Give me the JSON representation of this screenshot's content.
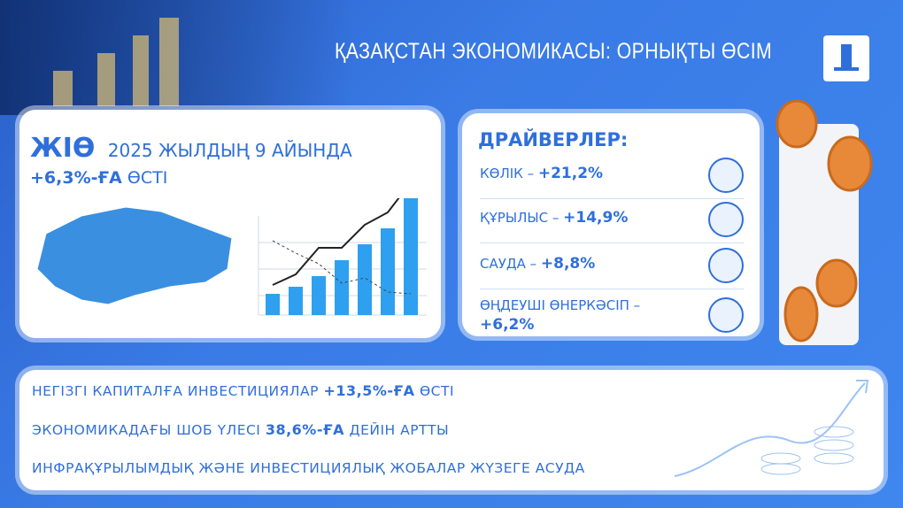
{
  "header": {
    "title": "ҚАЗАҚСТАН ЭКОНОМИКАСЫ: ОРНЫҚТЫ ӨСІМ"
  },
  "gdp": {
    "label": "ЖІӨ",
    "period": "2025 ЖЫЛДЫҢ 9 АЙЫНДА",
    "growth": "+6,3%-ҒА",
    "verb": "ӨСТІ"
  },
  "drivers": {
    "heading": "ДРАЙВЕРЛЕР:",
    "items": [
      {
        "name": "КӨЛІК –",
        "value": "+21,2%"
      },
      {
        "name": "ҚҰРЫЛЫС –",
        "value": "+14,9%"
      },
      {
        "name": "САУДА –",
        "value": "+8,8%"
      },
      {
        "name": "ӨҢДЕУШІ ӨНЕРКӘСІП –",
        "value": "+6,2%"
      }
    ]
  },
  "facts": [
    {
      "before": "НЕГІЗГІ КАПИТАЛҒА ИНВЕСТИЦИЯЛАР",
      "value": "+13,5%-ҒА",
      "after": "ӨСТІ"
    },
    {
      "before": "ЭКОНОМИКАДАҒЫ ШОБ ҮЛЕСІ",
      "value": "38,6%-ҒА",
      "after": "ДЕЙІН АРТТЫ"
    },
    {
      "before": "ИНФРАҚҰРЫЛЫМДЫҚ ЖӘНЕ ИНВЕСТИЦИЯЛЫҚ ЖОБАЛАР ЖҮЗЕГЕ АСУДА"
    }
  ]
}
